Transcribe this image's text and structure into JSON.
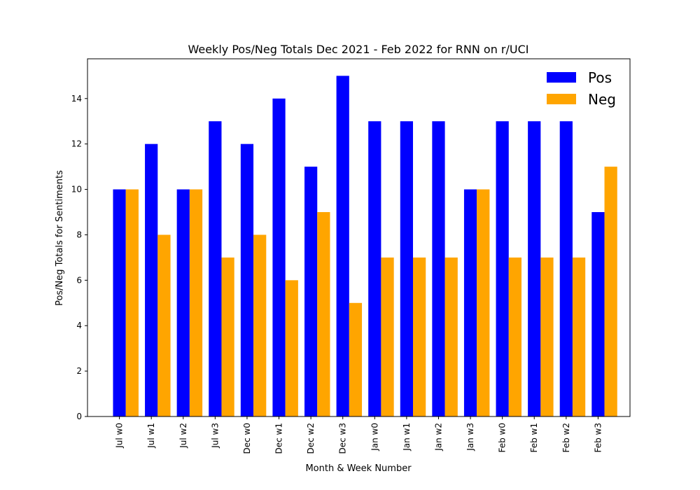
{
  "chart_data": {
    "type": "bar",
    "title": "Weekly Pos/Neg Totals Dec 2021 - Feb 2022 for RNN on r/UCI",
    "xlabel": "Month & Week Number",
    "ylabel": "Pos/Neg Totals for Sentiments",
    "ylim": [
      0,
      15.75
    ],
    "yticks": [
      "0",
      "2",
      "4",
      "6",
      "8",
      "10",
      "12",
      "14"
    ],
    "categories": [
      "Jul w0",
      "Jul w1",
      "Jul w2",
      "Jul w3",
      "Dec w0",
      "Dec w1",
      "Dec w2",
      "Dec w3",
      "Jan w0",
      "Jan w1",
      "Jan w2",
      "Jan w3",
      "Feb w0",
      "Feb w1",
      "Feb w2",
      "Feb w3"
    ],
    "series": [
      {
        "name": "Pos",
        "color": "#0000ff",
        "values": [
          10,
          12,
          10,
          13,
          12,
          14,
          11,
          15,
          13,
          13,
          13,
          10,
          13,
          13,
          13,
          9
        ]
      },
      {
        "name": "Neg",
        "color": "#ffa500",
        "values": [
          10,
          8,
          10,
          7,
          8,
          6,
          9,
          5,
          7,
          7,
          7,
          10,
          7,
          7,
          7,
          11
        ]
      }
    ],
    "legend_position": "top-right",
    "grid": false
  }
}
